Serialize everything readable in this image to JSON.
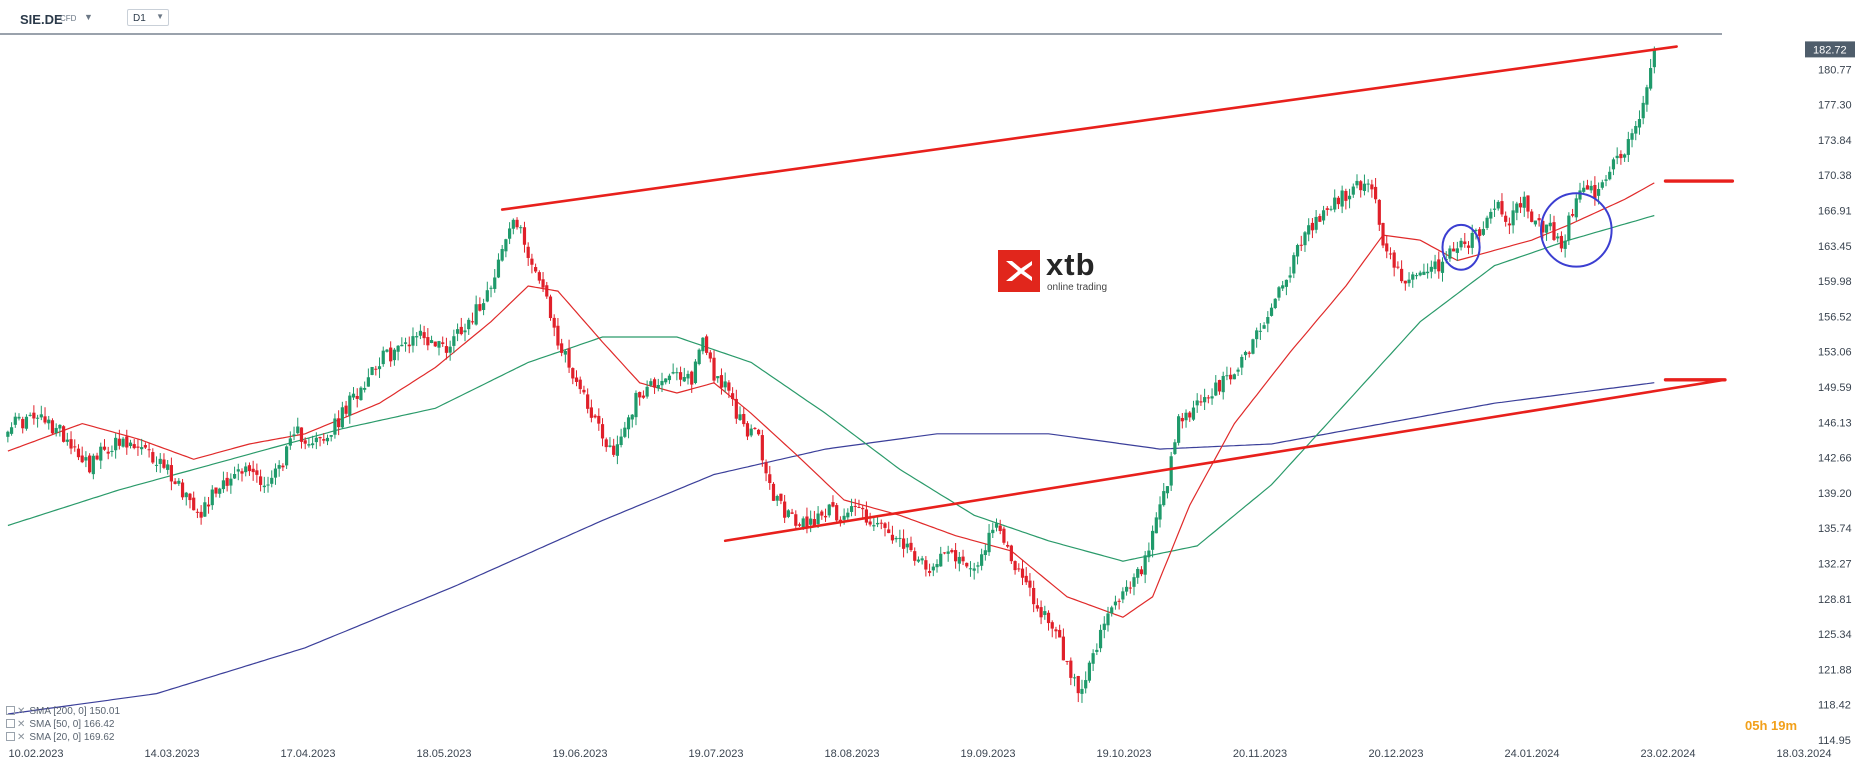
{
  "header": {
    "ticker": "SIE.DE",
    "instrument_type": "CFD",
    "timeframe": "D1"
  },
  "logo": {
    "name": "xtb",
    "tagline": "online trading"
  },
  "countdown": "05h 19m",
  "indicators": [
    {
      "label": "SMA [200, 0] 150.01",
      "color": "#3b3f9a"
    },
    {
      "label": "SMA [50, 0] 166.42",
      "color": "#2a9a6a"
    },
    {
      "label": "SMA [20, 0] 169.62",
      "color": "#e02a2a"
    }
  ],
  "chart_data": {
    "type": "candlestick",
    "y_ticks": [
      "180.77",
      "177.30",
      "173.84",
      "170.38",
      "166.91",
      "163.45",
      "159.98",
      "156.52",
      "153.06",
      "149.59",
      "146.13",
      "142.66",
      "139.20",
      "135.74",
      "132.27",
      "128.81",
      "125.34",
      "121.88",
      "118.42",
      "114.95"
    ],
    "ylim": [
      114.95,
      184.23
    ],
    "x_ticks": [
      "10.02.2023",
      "14.03.2023",
      "17.04.2023",
      "18.05.2023",
      "19.06.2023",
      "19.07.2023",
      "18.08.2023",
      "19.09.2023",
      "19.10.2023",
      "20.11.2023",
      "20.12.2023",
      "24.01.2024",
      "23.02.2024",
      "18.03.2024"
    ],
    "last_price": "182.72",
    "colors": {
      "up": "#1f9a6b",
      "down": "#e0202a",
      "sma200": "#3b3f9a",
      "sma50": "#2a9a6a",
      "sma20": "#e02a2a",
      "trendline": "#e8201c",
      "annotation_circle": "#3b3ed1"
    },
    "close_key_points": [
      [
        0,
        146.0
      ],
      [
        8,
        146.5
      ],
      [
        15,
        145.0
      ],
      [
        22,
        142.0
      ],
      [
        28,
        144.0
      ],
      [
        35,
        143.5
      ],
      [
        42,
        142.0
      ],
      [
        48,
        139.0
      ],
      [
        52,
        137.5
      ],
      [
        58,
        140.5
      ],
      [
        65,
        141.5
      ],
      [
        70,
        140.0
      ],
      [
        78,
        145.0
      ],
      [
        85,
        144.0
      ],
      [
        92,
        148.0
      ],
      [
        99,
        152.0
      ],
      [
        106,
        153.5
      ],
      [
        110,
        155.0
      ],
      [
        114,
        154.0
      ],
      [
        118,
        153.5
      ],
      [
        122,
        155.5
      ],
      [
        126,
        157.0
      ],
      [
        130,
        160.0
      ],
      [
        133,
        163.0
      ],
      [
        136,
        166.0
      ],
      [
        140,
        163.0
      ],
      [
        144,
        159.0
      ],
      [
        148,
        154.0
      ],
      [
        152,
        151.0
      ],
      [
        156,
        148.0
      ],
      [
        160,
        145.0
      ],
      [
        163,
        143.0
      ],
      [
        166,
        146.0
      ],
      [
        170,
        149.0
      ],
      [
        174,
        150.0
      ],
      [
        178,
        151.0
      ],
      [
        181,
        150.0
      ],
      [
        184,
        150.5
      ],
      [
        187,
        154.5
      ],
      [
        190,
        151.0
      ],
      [
        193,
        149.5
      ],
      [
        196,
        147.0
      ],
      [
        199,
        145.5
      ],
      [
        202,
        144.5
      ],
      [
        205,
        139.5
      ],
      [
        208,
        138.0
      ],
      [
        212,
        136.0
      ],
      [
        216,
        136.5
      ],
      [
        220,
        137.5
      ],
      [
        224,
        137.0
      ],
      [
        228,
        138.0
      ],
      [
        232,
        136.5
      ],
      [
        236,
        135.5
      ],
      [
        240,
        134.0
      ],
      [
        244,
        133.0
      ],
      [
        248,
        131.0
      ],
      [
        251,
        134.0
      ],
      [
        254,
        133.5
      ],
      [
        258,
        132.0
      ],
      [
        262,
        133.0
      ],
      [
        266,
        136.0
      ],
      [
        270,
        133.0
      ],
      [
        274,
        130.0
      ],
      [
        278,
        127.5
      ],
      [
        282,
        126.0
      ],
      [
        285,
        122.0
      ],
      [
        288,
        120.0
      ],
      [
        292,
        123.0
      ],
      [
        296,
        127.0
      ],
      [
        300,
        129.0
      ],
      [
        304,
        131.0
      ],
      [
        306,
        132.5
      ],
      [
        309,
        136.0
      ],
      [
        312,
        140.0
      ],
      [
        315,
        146.0
      ],
      [
        318,
        147.0
      ],
      [
        322,
        148.5
      ],
      [
        326,
        149.5
      ],
      [
        330,
        151.0
      ],
      [
        334,
        153.5
      ],
      [
        338,
        156.0
      ],
      [
        342,
        159.0
      ],
      [
        346,
        162.0
      ],
      [
        350,
        165.0
      ],
      [
        354,
        166.5
      ],
      [
        358,
        168.0
      ],
      [
        362,
        169.0
      ],
      [
        366,
        169.5
      ],
      [
        368,
        168.5
      ],
      [
        370,
        163.0
      ],
      [
        374,
        161.0
      ],
      [
        378,
        160.0
      ],
      [
        382,
        160.5
      ],
      [
        386,
        162.0
      ],
      [
        390,
        163.5
      ],
      [
        394,
        164.0
      ],
      [
        398,
        166.0
      ],
      [
        401,
        167.5
      ],
      [
        404,
        166.0
      ],
      [
        408,
        168.0
      ],
      [
        411,
        165.5
      ],
      [
        415,
        165.0
      ],
      [
        418,
        163.5
      ],
      [
        421,
        167.0
      ],
      [
        424,
        169.0
      ],
      [
        428,
        168.5
      ],
      [
        431,
        170.5
      ],
      [
        434,
        172.5
      ],
      [
        437,
        174.5
      ],
      [
        440,
        177.0
      ],
      [
        443,
        182.72
      ]
    ],
    "sma20_key_points": [
      [
        0,
        143.3
      ],
      [
        20,
        146.0
      ],
      [
        35,
        144.5
      ],
      [
        50,
        142.5
      ],
      [
        65,
        144.0
      ],
      [
        80,
        145.0
      ],
      [
        100,
        148.0
      ],
      [
        115,
        151.5
      ],
      [
        130,
        156.0
      ],
      [
        140,
        159.5
      ],
      [
        148,
        159.0
      ],
      [
        160,
        154.0
      ],
      [
        170,
        150.0
      ],
      [
        180,
        149.0
      ],
      [
        190,
        150.0
      ],
      [
        200,
        147.0
      ],
      [
        212,
        143.0
      ],
      [
        225,
        138.5
      ],
      [
        240,
        137.0
      ],
      [
        255,
        135.0
      ],
      [
        270,
        133.5
      ],
      [
        285,
        129.0
      ],
      [
        300,
        127.0
      ],
      [
        308,
        129.0
      ],
      [
        318,
        138.0
      ],
      [
        330,
        146.0
      ],
      [
        345,
        153.0
      ],
      [
        360,
        159.5
      ],
      [
        370,
        164.5
      ],
      [
        380,
        164.0
      ],
      [
        390,
        162.0
      ],
      [
        400,
        163.0
      ],
      [
        410,
        164.0
      ],
      [
        420,
        165.5
      ],
      [
        435,
        168.0
      ],
      [
        443,
        169.62
      ]
    ],
    "sma50_key_points": [
      [
        0,
        136.0
      ],
      [
        30,
        139.5
      ],
      [
        60,
        142.5
      ],
      [
        90,
        145.5
      ],
      [
        115,
        147.5
      ],
      [
        140,
        152.0
      ],
      [
        160,
        154.5
      ],
      [
        180,
        154.5
      ],
      [
        200,
        152.0
      ],
      [
        220,
        147.0
      ],
      [
        240,
        141.5
      ],
      [
        260,
        137.0
      ],
      [
        280,
        134.5
      ],
      [
        300,
        132.5
      ],
      [
        320,
        134.0
      ],
      [
        340,
        140.0
      ],
      [
        360,
        148.0
      ],
      [
        380,
        156.0
      ],
      [
        400,
        161.5
      ],
      [
        420,
        164.0
      ],
      [
        443,
        166.42
      ]
    ],
    "sma200_key_points": [
      [
        0,
        117.5
      ],
      [
        40,
        119.5
      ],
      [
        80,
        124.0
      ],
      [
        120,
        130.0
      ],
      [
        160,
        136.5
      ],
      [
        190,
        141.0
      ],
      [
        220,
        143.5
      ],
      [
        250,
        145.0
      ],
      [
        280,
        145.0
      ],
      [
        310,
        143.5
      ],
      [
        340,
        144.0
      ],
      [
        370,
        146.0
      ],
      [
        400,
        148.0
      ],
      [
        443,
        150.01
      ]
    ]
  },
  "annotations": {
    "upper_trendline": {
      "from": {
        "bar": 133,
        "price": 167.0
      },
      "to": {
        "bar": 449,
        "price": 183.0
      }
    },
    "lower_trendline": {
      "from": {
        "bar": 193,
        "price": 134.5
      },
      "to": {
        "bar": 462,
        "price": 150.3
      }
    },
    "level_mark_170": {
      "from": {
        "bar": 446,
        "price": 169.8
      },
      "to": {
        "bar": 464,
        "price": 169.8
      }
    },
    "level_mark_150": {
      "from": {
        "bar": 446,
        "price": 150.3
      },
      "to": {
        "bar": 462,
        "price": 150.3
      }
    },
    "circles": [
      {
        "bar": 391,
        "price": 163.3,
        "rx_bars": 5,
        "ry_price": 2.2
      },
      {
        "bar": 422,
        "price": 165.0,
        "rx_bars": 9.5,
        "ry_price": 3.6
      }
    ]
  }
}
